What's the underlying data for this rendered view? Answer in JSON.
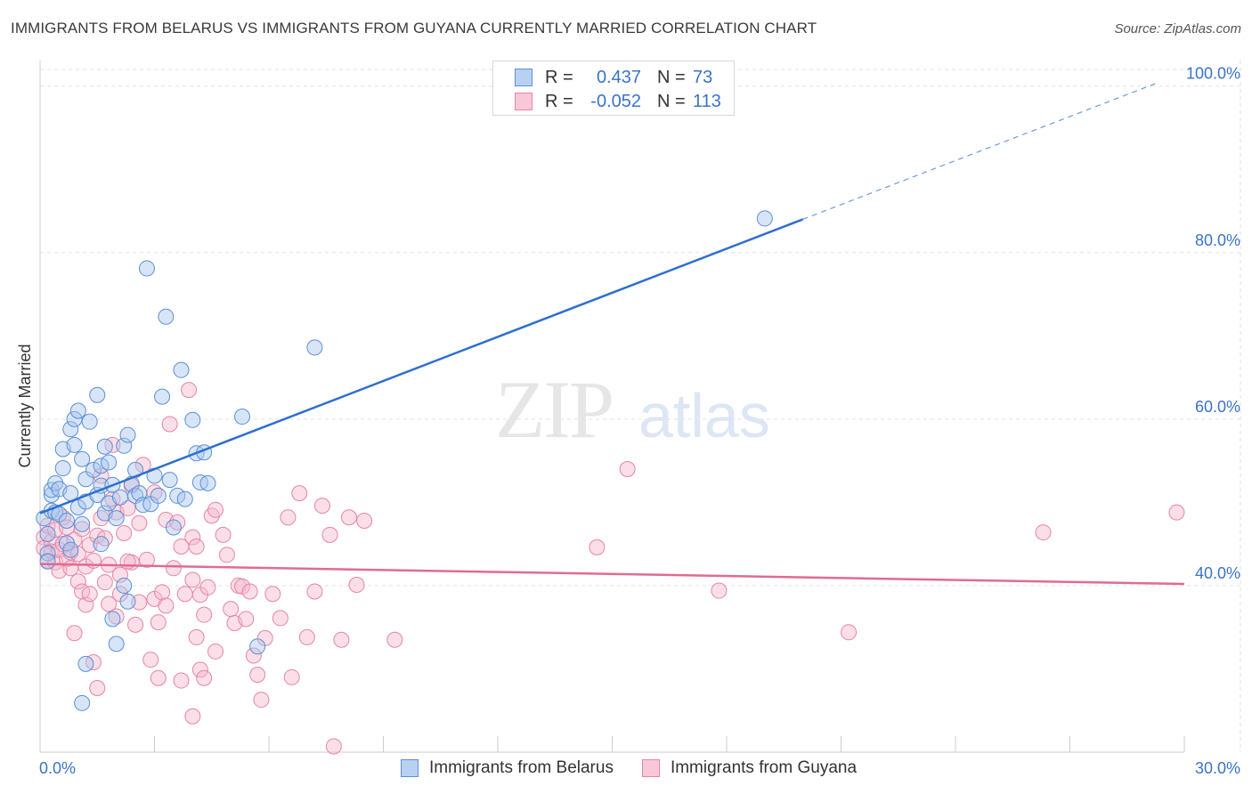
{
  "header": {
    "title": "IMMIGRANTS FROM BELARUS VS IMMIGRANTS FROM GUYANA CURRENTLY MARRIED CORRELATION CHART",
    "source": "Source: ZipAtlas.com"
  },
  "legend": {
    "rows": [
      {
        "r_label": "R =",
        "r_value": "0.437",
        "n_label": "N =",
        "n_value": "73"
      },
      {
        "r_label": "R =",
        "r_value": "-0.052",
        "n_label": "N =",
        "n_value": "113"
      }
    ]
  },
  "bottom_legend": [
    "Immigrants from Belarus",
    "Immigrants from Guyana"
  ],
  "watermark": {
    "zip": "ZIP",
    "atlas": "atlas"
  },
  "colors": {
    "blue_fill": "#a8c6ee",
    "blue_stroke": "#5b8fd6",
    "blue_line": "#2d6fcf",
    "pink_fill": "#f5b8cc",
    "pink_stroke": "#e884a6",
    "pink_line": "#e06b94",
    "axis_label": "#3a73c8",
    "grid": "#e2e2e2"
  },
  "chart_data": {
    "type": "scatter",
    "title": "IMMIGRANTS FROM BELARUS VS IMMIGRANTS FROM GUYANA CURRENTLY MARRIED CORRELATION CHART",
    "xlabel": "",
    "ylabel": "Currently Married",
    "xlim": [
      0,
      30
    ],
    "ylim": [
      20,
      102
    ],
    "x_tick_labels": [
      {
        "value": 0,
        "label": "0.0%"
      },
      {
        "value": 30,
        "label": "30.0%"
      }
    ],
    "y_ticks": [
      {
        "value": 40,
        "label": "40.0%"
      },
      {
        "value": 60,
        "label": "60.0%"
      },
      {
        "value": 80,
        "label": "80.0%"
      },
      {
        "value": 100,
        "label": "100.0%"
      }
    ],
    "series": [
      {
        "name": "Immigrants from Belarus",
        "r": 0.437,
        "n": 73,
        "trend": {
          "x0": 0,
          "y0": 48.7,
          "x1": 20.0,
          "y1": 84.0,
          "dash_to_x": 29.3,
          "dash_to_y": 100.4
        },
        "points": [
          [
            0.1,
            48.1
          ],
          [
            0.2,
            46.2
          ],
          [
            0.2,
            43.9
          ],
          [
            0.2,
            42.9
          ],
          [
            0.3,
            50.9
          ],
          [
            0.3,
            49.0
          ],
          [
            0.3,
            51.5
          ],
          [
            0.4,
            52.3
          ],
          [
            0.4,
            48.8
          ],
          [
            0.5,
            51.6
          ],
          [
            0.5,
            48.6
          ],
          [
            0.6,
            54.1
          ],
          [
            0.6,
            56.4
          ],
          [
            0.7,
            47.8
          ],
          [
            0.7,
            45.1
          ],
          [
            0.8,
            58.8
          ],
          [
            0.8,
            51.1
          ],
          [
            0.8,
            44.3
          ],
          [
            0.9,
            60.0
          ],
          [
            0.9,
            56.9
          ],
          [
            1.0,
            61.0
          ],
          [
            1.0,
            49.4
          ],
          [
            1.1,
            47.4
          ],
          [
            1.1,
            55.2
          ],
          [
            1.2,
            52.8
          ],
          [
            1.2,
            50.1
          ],
          [
            1.3,
            59.7
          ],
          [
            1.4,
            53.9
          ],
          [
            1.5,
            50.9
          ],
          [
            1.5,
            62.9
          ],
          [
            1.6,
            52.0
          ],
          [
            1.6,
            54.4
          ],
          [
            1.6,
            45.0
          ],
          [
            1.7,
            56.7
          ],
          [
            1.7,
            48.7
          ],
          [
            1.8,
            54.8
          ],
          [
            1.8,
            49.9
          ],
          [
            1.9,
            52.1
          ],
          [
            2.0,
            48.1
          ],
          [
            2.1,
            50.6
          ],
          [
            2.2,
            56.8
          ],
          [
            2.2,
            40.0
          ],
          [
            2.3,
            58.1
          ],
          [
            2.4,
            52.2
          ],
          [
            2.5,
            50.8
          ],
          [
            2.5,
            53.9
          ],
          [
            2.6,
            51.1
          ],
          [
            2.7,
            49.7
          ],
          [
            2.8,
            78.1
          ],
          [
            2.9,
            49.8
          ],
          [
            3.0,
            53.2
          ],
          [
            3.1,
            50.8
          ],
          [
            3.2,
            62.7
          ],
          [
            3.3,
            72.3
          ],
          [
            3.4,
            52.7
          ],
          [
            3.5,
            47.0
          ],
          [
            3.6,
            50.8
          ],
          [
            3.7,
            65.9
          ],
          [
            3.8,
            50.4
          ],
          [
            4.0,
            59.9
          ],
          [
            4.1,
            55.9
          ],
          [
            4.2,
            52.4
          ],
          [
            4.3,
            56.0
          ],
          [
            4.4,
            52.3
          ],
          [
            5.3,
            60.3
          ],
          [
            5.7,
            32.7
          ],
          [
            7.2,
            68.6
          ],
          [
            1.9,
            36.0
          ],
          [
            1.2,
            30.6
          ],
          [
            1.1,
            25.9
          ],
          [
            2.0,
            33.0
          ],
          [
            19.0,
            84.1
          ],
          [
            2.3,
            38.1
          ]
        ]
      },
      {
        "name": "Immigrants from Guyana",
        "r": -0.052,
        "n": 113,
        "trend": {
          "x0": 0,
          "y0": 42.6,
          "x1": 30,
          "y1": 40.2
        },
        "points": [
          [
            0.1,
            45.8
          ],
          [
            0.1,
            44.5
          ],
          [
            0.2,
            47.2
          ],
          [
            0.2,
            43.0
          ],
          [
            0.3,
            45.3
          ],
          [
            0.3,
            44.1
          ],
          [
            0.4,
            46.7
          ],
          [
            0.4,
            42.8
          ],
          [
            0.5,
            44.3
          ],
          [
            0.5,
            41.8
          ],
          [
            0.6,
            45.0
          ],
          [
            0.6,
            48.2
          ],
          [
            0.7,
            43.2
          ],
          [
            0.7,
            47.0
          ],
          [
            0.8,
            44.0
          ],
          [
            0.8,
            42.1
          ],
          [
            0.9,
            45.5
          ],
          [
            0.9,
            34.3
          ],
          [
            1.0,
            43.8
          ],
          [
            1.0,
            40.5
          ],
          [
            1.1,
            39.3
          ],
          [
            1.1,
            46.8
          ],
          [
            1.2,
            37.7
          ],
          [
            1.2,
            42.3
          ],
          [
            1.3,
            44.9
          ],
          [
            1.3,
            39.0
          ],
          [
            1.4,
            43.0
          ],
          [
            1.4,
            30.8
          ],
          [
            1.5,
            27.7
          ],
          [
            1.5,
            46.0
          ],
          [
            1.6,
            48.1
          ],
          [
            1.6,
            53.2
          ],
          [
            1.7,
            40.4
          ],
          [
            1.7,
            45.7
          ],
          [
            1.8,
            42.5
          ],
          [
            1.8,
            37.8
          ],
          [
            1.9,
            50.4
          ],
          [
            1.9,
            56.9
          ],
          [
            2.0,
            48.8
          ],
          [
            2.1,
            41.3
          ],
          [
            2.1,
            39.0
          ],
          [
            2.2,
            46.3
          ],
          [
            2.3,
            49.3
          ],
          [
            2.4,
            52.0
          ],
          [
            2.4,
            42.8
          ],
          [
            2.5,
            35.3
          ],
          [
            2.6,
            38.0
          ],
          [
            2.6,
            47.5
          ],
          [
            2.7,
            54.5
          ],
          [
            2.8,
            43.1
          ],
          [
            2.9,
            31.1
          ],
          [
            3.0,
            51.2
          ],
          [
            3.0,
            38.4
          ],
          [
            3.1,
            28.9
          ],
          [
            3.1,
            35.6
          ],
          [
            3.2,
            39.2
          ],
          [
            3.3,
            47.9
          ],
          [
            3.3,
            37.6
          ],
          [
            3.4,
            59.4
          ],
          [
            3.5,
            42.1
          ],
          [
            3.6,
            47.6
          ],
          [
            3.7,
            28.6
          ],
          [
            3.7,
            44.7
          ],
          [
            3.8,
            39.0
          ],
          [
            3.9,
            63.5
          ],
          [
            4.0,
            40.7
          ],
          [
            4.0,
            45.8
          ],
          [
            4.1,
            44.7
          ],
          [
            4.1,
            33.8
          ],
          [
            4.2,
            29.9
          ],
          [
            4.2,
            38.9
          ],
          [
            4.3,
            36.5
          ],
          [
            4.4,
            39.8
          ],
          [
            4.5,
            48.4
          ],
          [
            4.6,
            49.1
          ],
          [
            4.6,
            32.1
          ],
          [
            4.8,
            46.1
          ],
          [
            4.9,
            43.7
          ],
          [
            5.0,
            37.2
          ],
          [
            5.1,
            35.5
          ],
          [
            5.2,
            40.0
          ],
          [
            5.3,
            39.9
          ],
          [
            5.4,
            36.0
          ],
          [
            5.5,
            39.3
          ],
          [
            5.6,
            31.6
          ],
          [
            5.7,
            29.3
          ],
          [
            5.8,
            26.3
          ],
          [
            5.9,
            33.7
          ],
          [
            6.1,
            39.0
          ],
          [
            6.3,
            36.1
          ],
          [
            6.5,
            48.2
          ],
          [
            6.6,
            29.0
          ],
          [
            6.8,
            51.1
          ],
          [
            7.0,
            33.8
          ],
          [
            7.2,
            39.3
          ],
          [
            7.4,
            49.6
          ],
          [
            7.6,
            46.1
          ],
          [
            7.7,
            20.7
          ],
          [
            7.9,
            33.5
          ],
          [
            8.1,
            48.2
          ],
          [
            8.3,
            40.1
          ],
          [
            8.5,
            47.8
          ],
          [
            9.3,
            33.5
          ],
          [
            4.3,
            28.9
          ],
          [
            4.0,
            24.3
          ],
          [
            2.0,
            36.3
          ],
          [
            2.3,
            42.9
          ],
          [
            14.6,
            44.6
          ],
          [
            15.4,
            54.0
          ],
          [
            17.8,
            39.4
          ],
          [
            21.2,
            34.4
          ],
          [
            26.3,
            46.4
          ],
          [
            29.8,
            48.8
          ]
        ]
      }
    ]
  }
}
